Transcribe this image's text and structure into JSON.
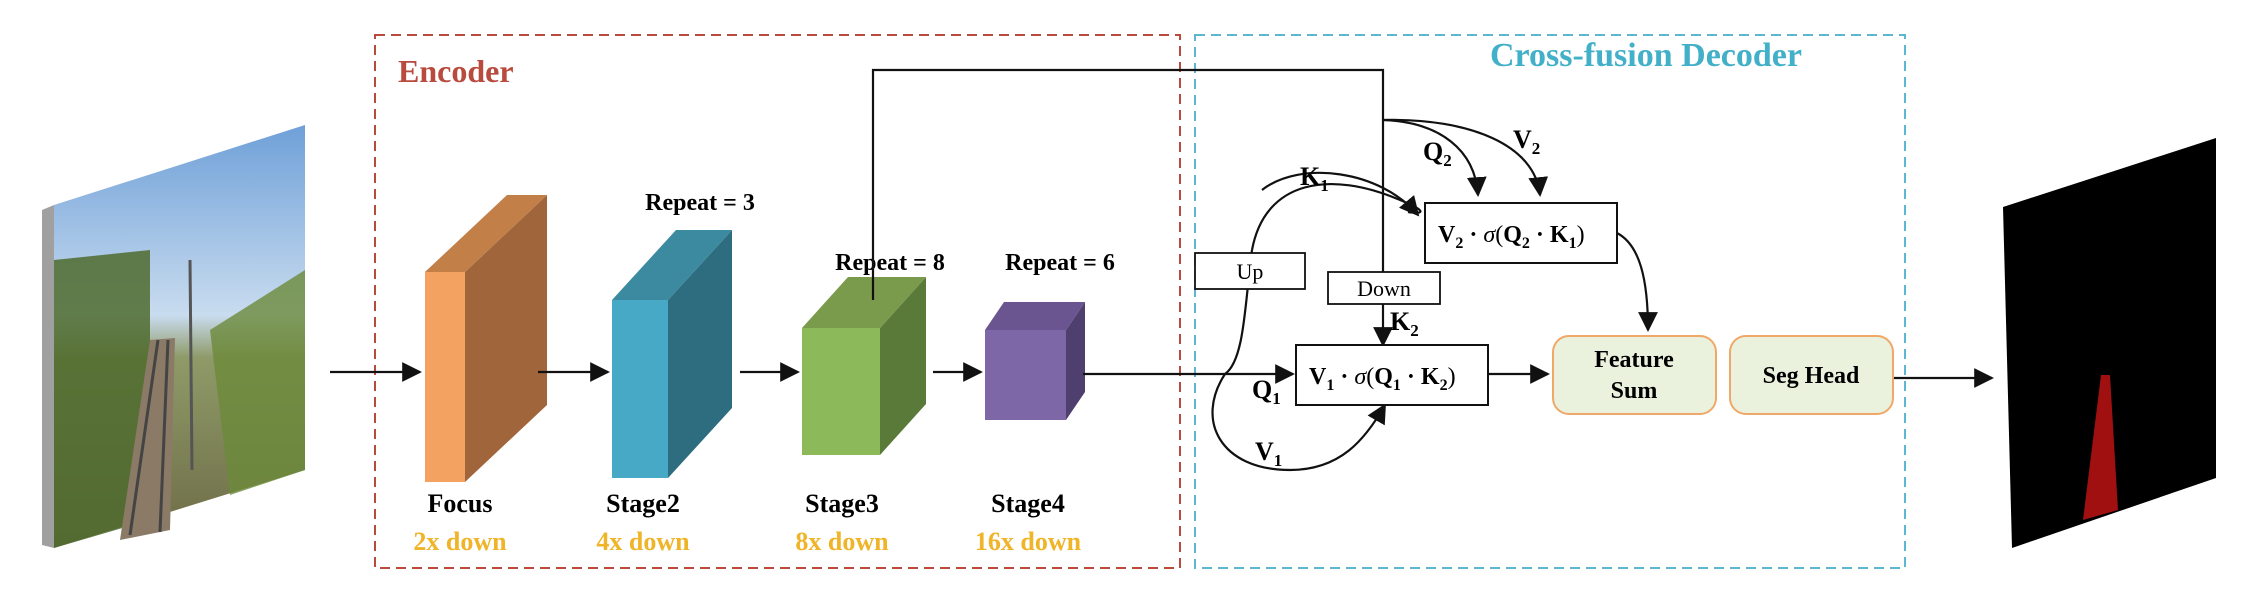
{
  "encoder": {
    "title": "Encoder",
    "title_color": "#b84a3e",
    "border_color": "#b84a3e"
  },
  "decoder": {
    "title": "Cross-fusion Decoder",
    "title_color": "#42b0c8",
    "border_color": "#5ab8d0"
  },
  "stages": [
    {
      "name": "Focus",
      "downsample": "2x down",
      "repeat": "",
      "color": "#f4a261",
      "side_color": "#a0653a"
    },
    {
      "name": "Stage2",
      "downsample": "4x down",
      "repeat": "Repeat = 3",
      "color": "#47a9c5",
      "side_color": "#2e6d80"
    },
    {
      "name": "Stage3",
      "downsample": "8x down",
      "repeat": "Repeat = 8",
      "color": "#8cba5b",
      "side_color": "#5a7a3a"
    },
    {
      "name": "Stage4",
      "downsample": "16x down",
      "repeat": "Repeat = 6",
      "color": "#7d67a6",
      "side_color": "#4f3f6f"
    }
  ],
  "downsample_color": "#f0b429",
  "ops": {
    "up": "Up",
    "down": "Down",
    "feature_sum": [
      "Feature",
      "Sum"
    ],
    "seg_head": "Seg Head",
    "module_fill": "#eaf1dd",
    "module_border": "#f0a868"
  },
  "attention": {
    "top": {
      "v": "V",
      "v_sub": "2",
      "sigma": "σ",
      "q": "Q",
      "q_sub": "2",
      "k": "K",
      "k_sub": "1"
    },
    "bottom": {
      "v": "V",
      "v_sub": "1",
      "sigma": "σ",
      "q": "Q",
      "q_sub": "1",
      "k": "K",
      "k_sub": "2"
    }
  },
  "edge_labels": {
    "k1": {
      "main": "K",
      "sub": "1"
    },
    "q2": {
      "main": "Q",
      "sub": "2"
    },
    "v2": {
      "main": "V",
      "sub": "2"
    },
    "k2": {
      "main": "K",
      "sub": "2"
    },
    "q1": {
      "main": "Q",
      "sub": "1"
    },
    "v1": {
      "main": "V",
      "sub": "1"
    }
  },
  "input_image": {
    "icon": "railway-scene-photo"
  },
  "output_image": {
    "icon": "segmentation-mask",
    "mask_color": "#a01010"
  }
}
